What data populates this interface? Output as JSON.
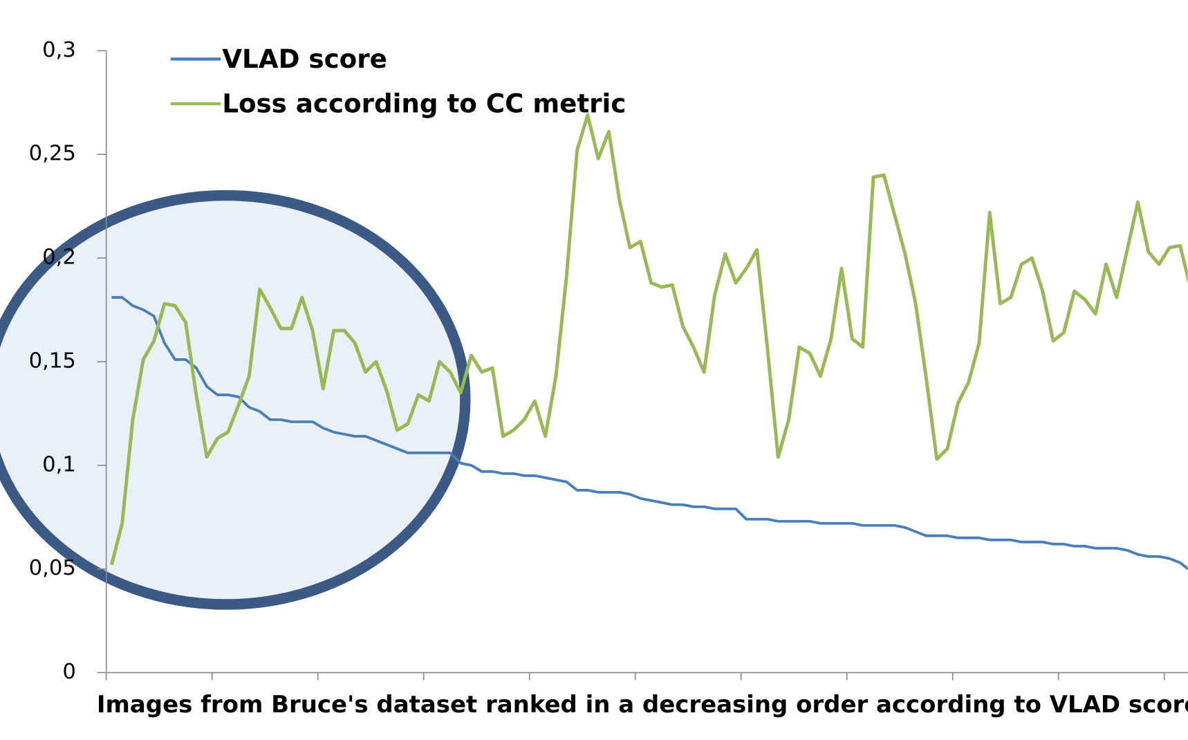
{
  "chart_data": {
    "type": "line",
    "x_label": "Images from Bruce's dataset ranked in a decreasing order according to VLAD scores",
    "categories": [
      null,
      null,
      null,
      null,
      null,
      null,
      null,
      null,
      null,
      null,
      null,
      null,
      null,
      null,
      null,
      null,
      null,
      null,
      null,
      null,
      null,
      null,
      null,
      null,
      null,
      null,
      null,
      null,
      null,
      null,
      null,
      null,
      null,
      null,
      null,
      null,
      null,
      null,
      null,
      null,
      null,
      null,
      null,
      null,
      null,
      null,
      null,
      null,
      null,
      null,
      null,
      null,
      null,
      null,
      null,
      null,
      null,
      null,
      null,
      null,
      null,
      null,
      null,
      null,
      null,
      null,
      null,
      null,
      null,
      null,
      null,
      null,
      null,
      null,
      null,
      null,
      null,
      null,
      null,
      null,
      null,
      null,
      null,
      null,
      null,
      null,
      null,
      null,
      null,
      null,
      null,
      null,
      null,
      null,
      null,
      null,
      null,
      null,
      null,
      null,
      null,
      null,
      null
    ],
    "series": [
      {
        "name": "VLAD score",
        "color": "#4a7ebb",
        "values": [
          0.181,
          0.181,
          0.177,
          0.175,
          0.172,
          0.159,
          0.151,
          0.151,
          0.147,
          0.138,
          0.134,
          0.134,
          0.133,
          0.128,
          0.126,
          0.122,
          0.122,
          0.121,
          0.121,
          0.121,
          0.118,
          0.116,
          0.115,
          0.114,
          0.114,
          0.112,
          0.11,
          0.108,
          0.106,
          0.106,
          0.106,
          0.106,
          0.106,
          0.101,
          0.1,
          0.097,
          0.097,
          0.096,
          0.096,
          0.095,
          0.095,
          0.094,
          0.093,
          0.092,
          0.088,
          0.088,
          0.087,
          0.087,
          0.087,
          0.086,
          0.084,
          0.083,
          0.082,
          0.081,
          0.081,
          0.08,
          0.08,
          0.079,
          0.079,
          0.079,
          0.074,
          0.074,
          0.074,
          0.073,
          0.073,
          0.073,
          0.073,
          0.072,
          0.072,
          0.072,
          0.072,
          0.071,
          0.071,
          0.071,
          0.071,
          0.07,
          0.068,
          0.066,
          0.066,
          0.066,
          0.065,
          0.065,
          0.065,
          0.064,
          0.064,
          0.064,
          0.063,
          0.063,
          0.063,
          0.062,
          0.062,
          0.061,
          0.061,
          0.06,
          0.06,
          0.06,
          0.059,
          0.057,
          0.056,
          0.056,
          0.055,
          0.053,
          0.049
        ]
      },
      {
        "name": "Loss according to CC metric",
        "color": "#98b954",
        "values": [
          0.052,
          0.072,
          0.122,
          0.151,
          0.16,
          0.178,
          0.177,
          0.169,
          0.134,
          0.104,
          0.113,
          0.116,
          0.129,
          0.143,
          0.185,
          0.176,
          0.166,
          0.166,
          0.181,
          0.165,
          0.137,
          0.165,
          0.165,
          0.159,
          0.145,
          0.15,
          0.136,
          0.117,
          0.12,
          0.134,
          0.131,
          0.15,
          0.145,
          0.135,
          0.153,
          0.145,
          0.147,
          0.114,
          0.117,
          0.122,
          0.131,
          0.114,
          0.143,
          0.191,
          0.252,
          0.269,
          0.248,
          0.261,
          0.228,
          0.205,
          0.208,
          0.188,
          0.186,
          0.187,
          0.167,
          0.157,
          0.145,
          0.182,
          0.202,
          0.188,
          0.195,
          0.204,
          0.156,
          0.104,
          0.122,
          0.157,
          0.154,
          0.143,
          0.161,
          0.195,
          0.161,
          0.157,
          0.239,
          0.24,
          0.221,
          0.202,
          0.178,
          0.142,
          0.103,
          0.108,
          0.13,
          0.14,
          0.159,
          0.222,
          0.178,
          0.181,
          0.197,
          0.2,
          0.184,
          0.16,
          0.164,
          0.184,
          0.18,
          0.173,
          0.197,
          0.181,
          0.204,
          0.227,
          0.203,
          0.197,
          0.205,
          0.206,
          0.185
        ]
      }
    ],
    "ylim": [
      0,
      0.3
    ],
    "yticks": [
      0,
      {
        "value": 0.05,
        "label": "0,05"
      },
      {
        "value": 0.1,
        "label": "0,1"
      },
      {
        "value": 0.15,
        "label": "0,15"
      },
      {
        "value": 0.2,
        "label": "0,2"
      },
      {
        "value": 0.25,
        "label": "0,25"
      },
      {
        "value": 0.3,
        "label": "0,3"
      }
    ],
    "grid": false,
    "legend": "top-left"
  }
}
